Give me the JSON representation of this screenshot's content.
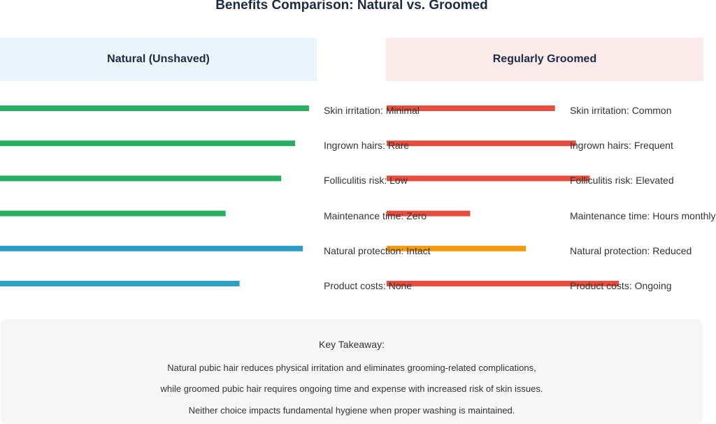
{
  "chart_data": {
    "type": "bar",
    "title": "Benefits Comparison: Natural vs. Groomed",
    "columns": [
      {
        "name": "Natural (Unshaved)",
        "items": [
          {
            "label": "Skin irritation: Minimal",
            "value": 1.0,
            "color": "#27ae60"
          },
          {
            "label": "Ingrown hairs: Rare",
            "value": 0.955,
            "color": "#27ae60"
          },
          {
            "label": "Folliculitis risk: Low",
            "value": 0.91,
            "color": "#27ae60"
          },
          {
            "label": "Maintenance time: Zero",
            "value": 0.73,
            "color": "#27ae60"
          },
          {
            "label": "Natural protection: Intact",
            "value": 0.98,
            "color": "#2e9fc4"
          },
          {
            "label": "Product costs: None",
            "value": 0.775,
            "color": "#2e9fc4"
          }
        ]
      },
      {
        "name": "Regularly Groomed",
        "items": [
          {
            "label": "Skin irritation: Common",
            "value": 0.725,
            "color": "#e74c3c"
          },
          {
            "label": "Ingrown hairs: Frequent",
            "value": 0.815,
            "color": "#e74c3c"
          },
          {
            "label": "Folliculitis risk: Elevated",
            "value": 0.875,
            "color": "#e74c3c"
          },
          {
            "label": "Maintenance time: Hours monthly",
            "value": 0.36,
            "color": "#e74c3c"
          },
          {
            "label": "Natural protection: Reduced",
            "value": 0.6,
            "color": "#f39c12"
          },
          {
            "label": "Product costs: Ongoing",
            "value": 1.0,
            "color": "#e74c3c"
          }
        ]
      }
    ]
  },
  "takeaway": {
    "heading": "Key Takeaway:",
    "lines": [
      "Natural pubic hair reduces physical irritation and eliminates grooming-related complications,",
      "while groomed pubic hair requires ongoing time and expense with increased risk of skin issues.",
      "Neither choice impacts fundamental hygiene when proper washing is maintained."
    ]
  }
}
